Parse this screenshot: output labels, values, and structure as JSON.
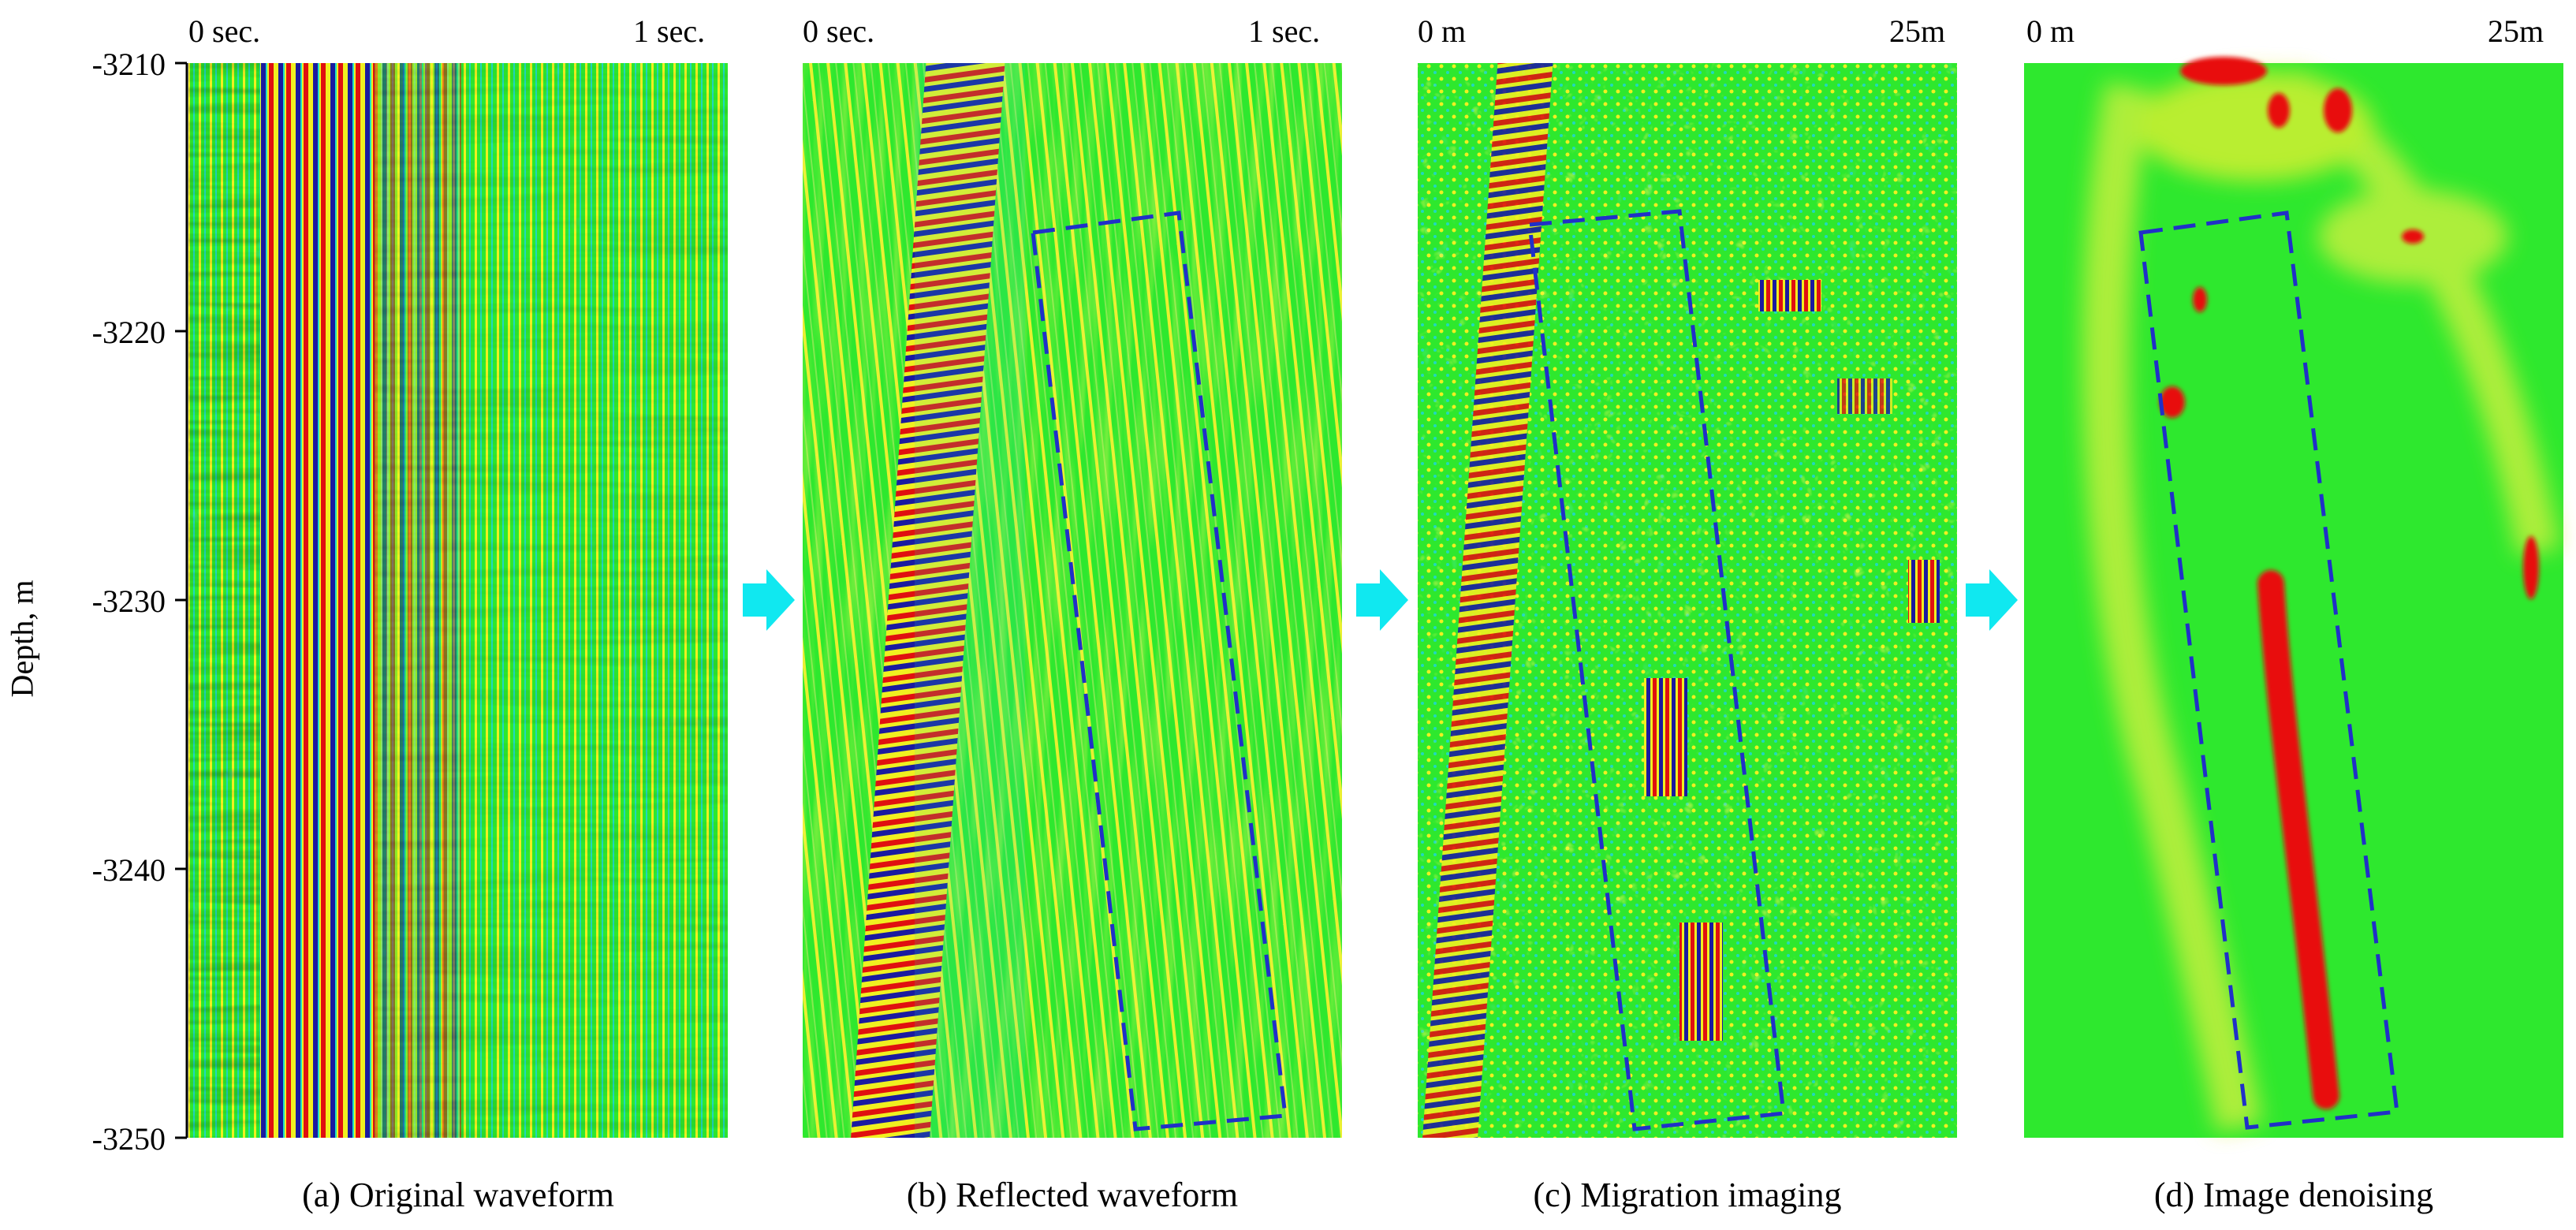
{
  "figure": {
    "y_axis": {
      "label": "Depth, m",
      "ticks": [
        "-3210",
        "-3220",
        "-3230",
        "-3240",
        "-3250"
      ]
    },
    "panels": [
      {
        "id": "a",
        "caption": "(a) Original waveform",
        "x_start": "0 sec.",
        "x_end": "1 sec.",
        "has_box": false
      },
      {
        "id": "b",
        "caption": "(b) Reflected waveform",
        "x_start": "0 sec.",
        "x_end": "1 sec.",
        "has_box": true
      },
      {
        "id": "c",
        "caption": "(c) Migration imaging",
        "x_start": "0 m",
        "x_end": "25m",
        "has_box": true
      },
      {
        "id": "d",
        "caption": "(d) Image denoising",
        "x_start": "0 m",
        "x_end": "25m",
        "has_box": true
      }
    ],
    "colors": {
      "background_field": "#2ee82e",
      "trough": "#1a1aa0",
      "peak": "#e01010",
      "halo": "#f0f020",
      "cyan_trace": "#20e0c8",
      "arrow": "#10e8f0",
      "box": "#2030c8"
    }
  }
}
